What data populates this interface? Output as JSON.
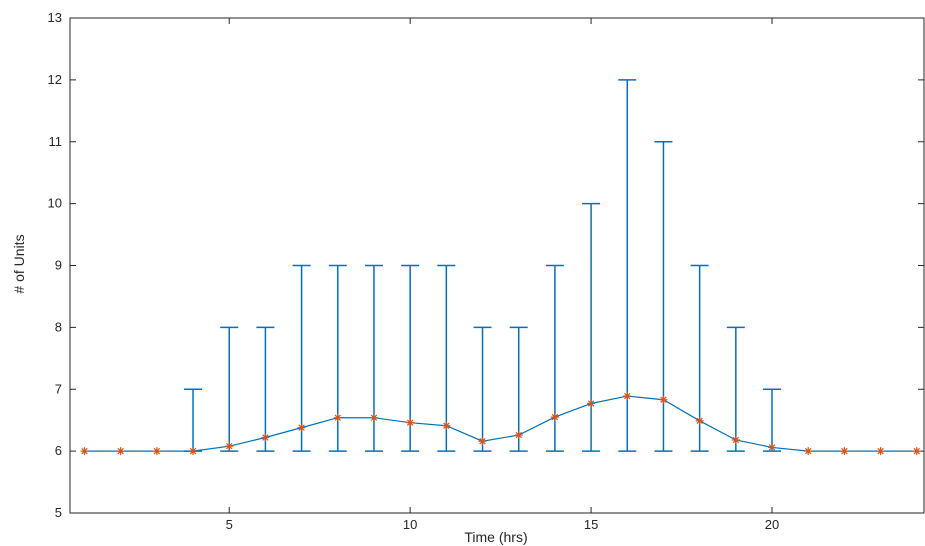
{
  "chart_data": {
    "type": "line",
    "xlabel": "Time (hrs)",
    "ylabel": "# of Units",
    "xlim": [
      0.6,
      24.2
    ],
    "ylim": [
      5,
      13
    ],
    "xticks": [
      5,
      10,
      15,
      20
    ],
    "yticks": [
      5,
      6,
      7,
      8,
      9,
      10,
      11,
      12,
      13
    ],
    "grid": false,
    "x": [
      1,
      2,
      3,
      4,
      5,
      6,
      7,
      8,
      9,
      10,
      11,
      12,
      13,
      14,
      15,
      16,
      17,
      18,
      19,
      20,
      21,
      22,
      23,
      24
    ],
    "mean": [
      6,
      6,
      6,
      6,
      6.08,
      6.22,
      6.38,
      6.54,
      6.54,
      6.46,
      6.41,
      6.16,
      6.26,
      6.55,
      6.77,
      6.89,
      6.83,
      6.49,
      6.18,
      6.06,
      6,
      6,
      6,
      6
    ],
    "lower": [
      6,
      6,
      6,
      6,
      6,
      6,
      6,
      6,
      6,
      6,
      6,
      6,
      6,
      6,
      6,
      6,
      6,
      6,
      6,
      6,
      6,
      6,
      6,
      6
    ],
    "upper": [
      6,
      6,
      6,
      7,
      8,
      8,
      9,
      9,
      9,
      9,
      9,
      8,
      8,
      9,
      10,
      12,
      11,
      9,
      8,
      7,
      6,
      6,
      6,
      6
    ],
    "colors": {
      "line": "#0072BD",
      "marker": "#D95319",
      "axis": "#262626"
    }
  }
}
